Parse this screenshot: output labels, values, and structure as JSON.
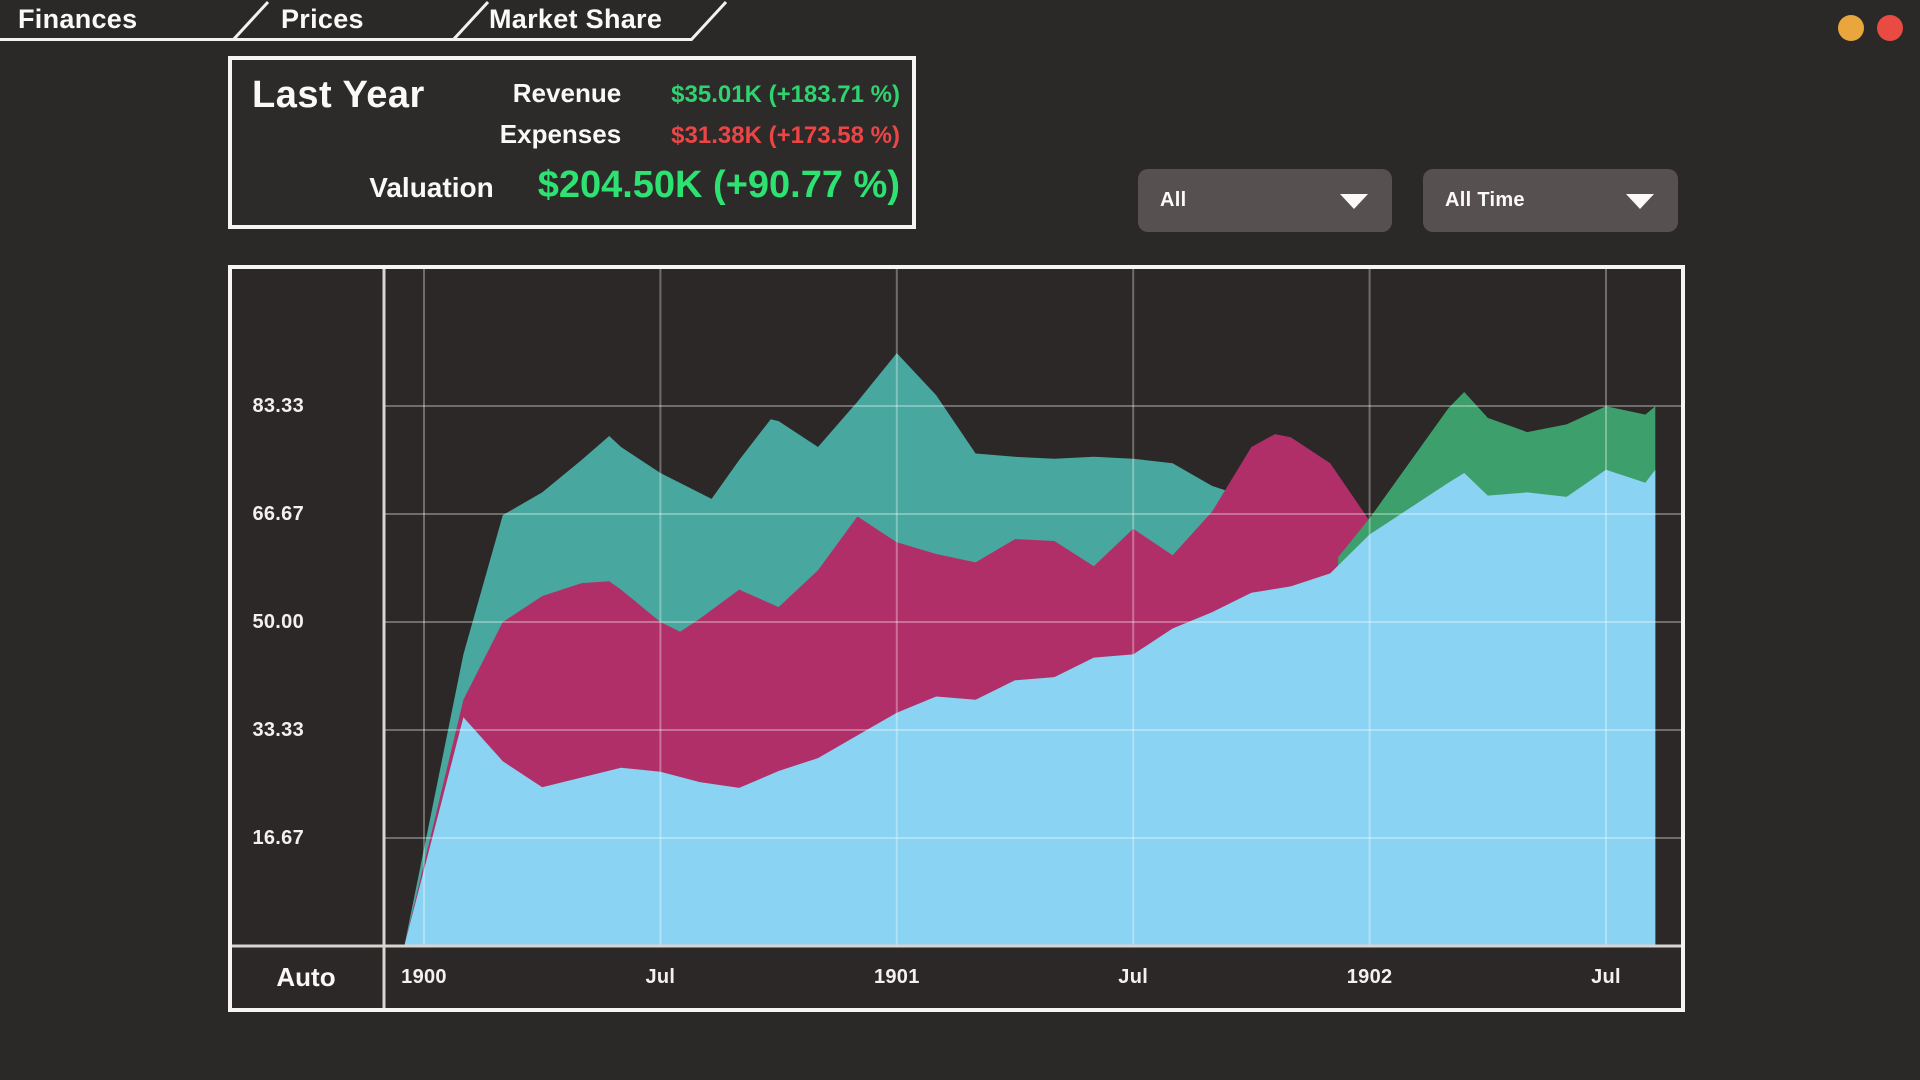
{
  "tabs": [
    {
      "label": "Finances"
    },
    {
      "label": "Prices"
    },
    {
      "label": "Market Share"
    }
  ],
  "window_controls": {
    "orange_dot_color": "#e9a63d",
    "red_dot_color": "#e94b43"
  },
  "summary_panel": {
    "title": "Last Year",
    "rows": [
      {
        "label": "Revenue",
        "value": "$35.01K (+183.71 %)",
        "color": "#2fd36f"
      },
      {
        "label": "Expenses",
        "value": "$31.38K (+173.58 %)",
        "color": "#ed4546"
      }
    ],
    "valuation": {
      "label": "Valuation",
      "value": "$204.50K (+90.77 %)",
      "color": "#2ee272"
    }
  },
  "filters": [
    {
      "value": "All"
    },
    {
      "value": "All Time"
    }
  ],
  "axis_mode_label": "Auto",
  "chart_data": {
    "type": "area",
    "title": "",
    "xlabel": "",
    "ylabel": "",
    "x_unit": "months since Jan 1900",
    "ylim": [
      0,
      104.5
    ],
    "grid": true,
    "legend": "none",
    "x_ticks": [
      {
        "label": "1900",
        "month": 0
      },
      {
        "label": "Jul",
        "month": 6
      },
      {
        "label": "1901",
        "month": 12
      },
      {
        "label": "Jul",
        "month": 18
      },
      {
        "label": "1902",
        "month": 24
      },
      {
        "label": "Jul",
        "month": 30
      }
    ],
    "y_ticks": [
      {
        "label": "83.33",
        "value": 83.33
      },
      {
        "label": "66.67",
        "value": 66.67
      },
      {
        "label": "50.00",
        "value": 50.0
      },
      {
        "label": "33.33",
        "value": 33.33
      },
      {
        "label": "16.67",
        "value": 16.67
      }
    ],
    "note": "Layered area chart. Each series lists its visible top boundary as [month, value]; series are painted in listed order and each fills down to the zero baseline.",
    "series": [
      {
        "name": "teal",
        "color": "#48a79e",
        "points": [
          [
            -0.5,
            0
          ],
          [
            1,
            45
          ],
          [
            2,
            66.5
          ],
          [
            3,
            70
          ],
          [
            4,
            75
          ],
          [
            4.7,
            78.7
          ],
          [
            5,
            77
          ],
          [
            6,
            73
          ],
          [
            7.3,
            69
          ],
          [
            8,
            75
          ],
          [
            8.8,
            81.3
          ],
          [
            9,
            81
          ],
          [
            10,
            77
          ],
          [
            11,
            84
          ],
          [
            12,
            91.5
          ],
          [
            13,
            85
          ],
          [
            14,
            76
          ],
          [
            15,
            75.5
          ],
          [
            16,
            75.2
          ],
          [
            17,
            75.5
          ],
          [
            18,
            75.2
          ],
          [
            19,
            74.5
          ],
          [
            20,
            71
          ],
          [
            21,
            69
          ]
        ]
      },
      {
        "name": "magenta",
        "color": "#b12f68",
        "points": [
          [
            -0.5,
            0
          ],
          [
            1,
            38
          ],
          [
            2,
            50
          ],
          [
            3,
            54
          ],
          [
            4,
            56
          ],
          [
            4.7,
            56.3
          ],
          [
            5,
            55
          ],
          [
            6,
            50
          ],
          [
            6.5,
            48.5
          ],
          [
            7,
            50.5
          ],
          [
            8,
            55
          ],
          [
            9,
            52.3
          ],
          [
            10,
            58
          ],
          [
            11,
            66.3
          ],
          [
            12,
            62.3
          ],
          [
            13,
            60.5
          ],
          [
            14,
            59.2
          ],
          [
            15,
            62.8
          ],
          [
            16,
            62.5
          ],
          [
            17,
            58.6
          ],
          [
            18,
            64.4
          ],
          [
            19,
            60.3
          ],
          [
            20,
            67
          ],
          [
            21,
            77
          ],
          [
            21.6,
            79
          ],
          [
            22,
            78.5
          ],
          [
            23,
            74.5
          ],
          [
            24,
            65.6
          ]
        ]
      },
      {
        "name": "green",
        "color": "#3da06c",
        "points": [
          [
            23.2,
            60
          ],
          [
            24,
            66
          ],
          [
            25,
            74.5
          ],
          [
            26,
            83
          ],
          [
            26.4,
            85.5
          ],
          [
            27,
            81.5
          ],
          [
            28,
            79.3
          ],
          [
            29,
            80.5
          ],
          [
            30,
            83.3
          ],
          [
            31,
            82
          ],
          [
            31.25,
            83.3
          ]
        ]
      },
      {
        "name": "blue",
        "color": "#8bd3f3",
        "points": [
          [
            -0.5,
            0
          ],
          [
            1,
            35.3
          ],
          [
            2,
            28.5
          ],
          [
            3,
            24.5
          ],
          [
            4,
            26
          ],
          [
            5,
            27.5
          ],
          [
            6,
            26.9
          ],
          [
            7,
            25.3
          ],
          [
            8,
            24.4
          ],
          [
            9,
            27
          ],
          [
            10,
            29
          ],
          [
            11,
            32.5
          ],
          [
            12,
            36
          ],
          [
            13,
            38.5
          ],
          [
            14,
            38
          ],
          [
            15,
            41
          ],
          [
            16,
            41.5
          ],
          [
            17,
            44.5
          ],
          [
            18,
            45
          ],
          [
            19,
            49
          ],
          [
            20,
            51.5
          ],
          [
            21,
            54.5
          ],
          [
            22,
            55.5
          ],
          [
            23,
            57.5
          ],
          [
            24,
            63.5
          ],
          [
            25,
            67.5
          ],
          [
            26,
            71.5
          ],
          [
            26.4,
            73
          ],
          [
            27,
            69.5
          ],
          [
            28,
            70
          ],
          [
            29,
            69.3
          ],
          [
            30,
            73.5
          ],
          [
            31,
            71.5
          ],
          [
            31.25,
            73.5
          ]
        ]
      }
    ]
  }
}
